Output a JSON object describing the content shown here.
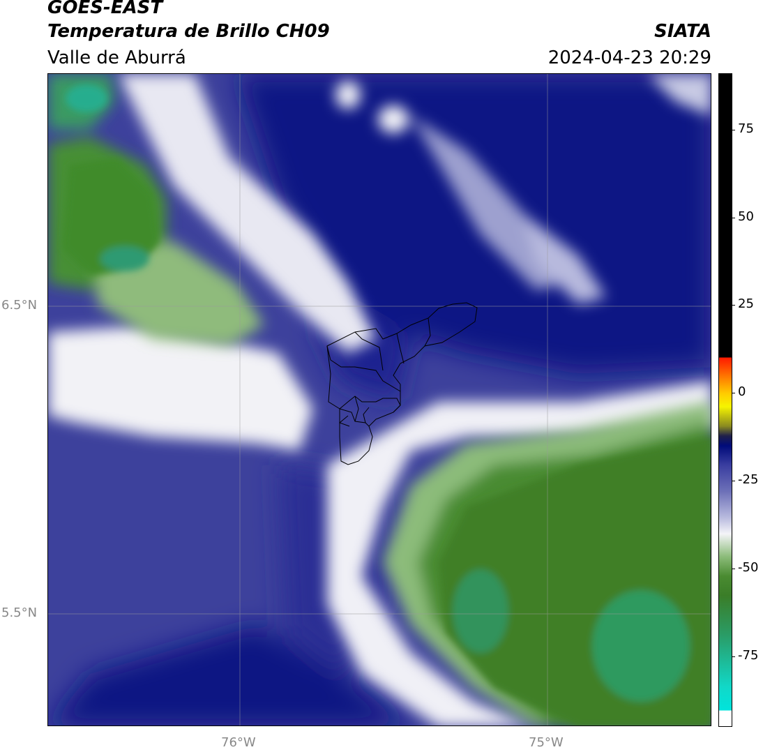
{
  "header": {
    "satellite": "GOES-EAST",
    "product": "Temperatura de Brillo CH09",
    "region": "Valle de Aburrá",
    "source": "SIATA",
    "datetime": "2024-04-23 20:29"
  },
  "map": {
    "lat_labels": [
      "6.5°N",
      "5.5°N"
    ],
    "lon_labels": [
      "76°W",
      "75°W"
    ]
  },
  "colorbar": {
    "ticks": [
      "75",
      "50",
      "25",
      "0",
      "-25",
      "-50",
      "-75"
    ],
    "tick_values": [
      75,
      50,
      25,
      0,
      -25,
      -50,
      -75
    ],
    "range": [
      -95,
      91
    ],
    "colors": {
      "cold_cyan": "#11d8c8",
      "green": "#3a7d28",
      "white": "#f4f4f8",
      "blue": "#3a3ea0",
      "navy": "#000b7a",
      "yellow": "#f6f400",
      "orange": "#ff8c00",
      "red": "#ff1a00",
      "black": "#000000"
    }
  }
}
